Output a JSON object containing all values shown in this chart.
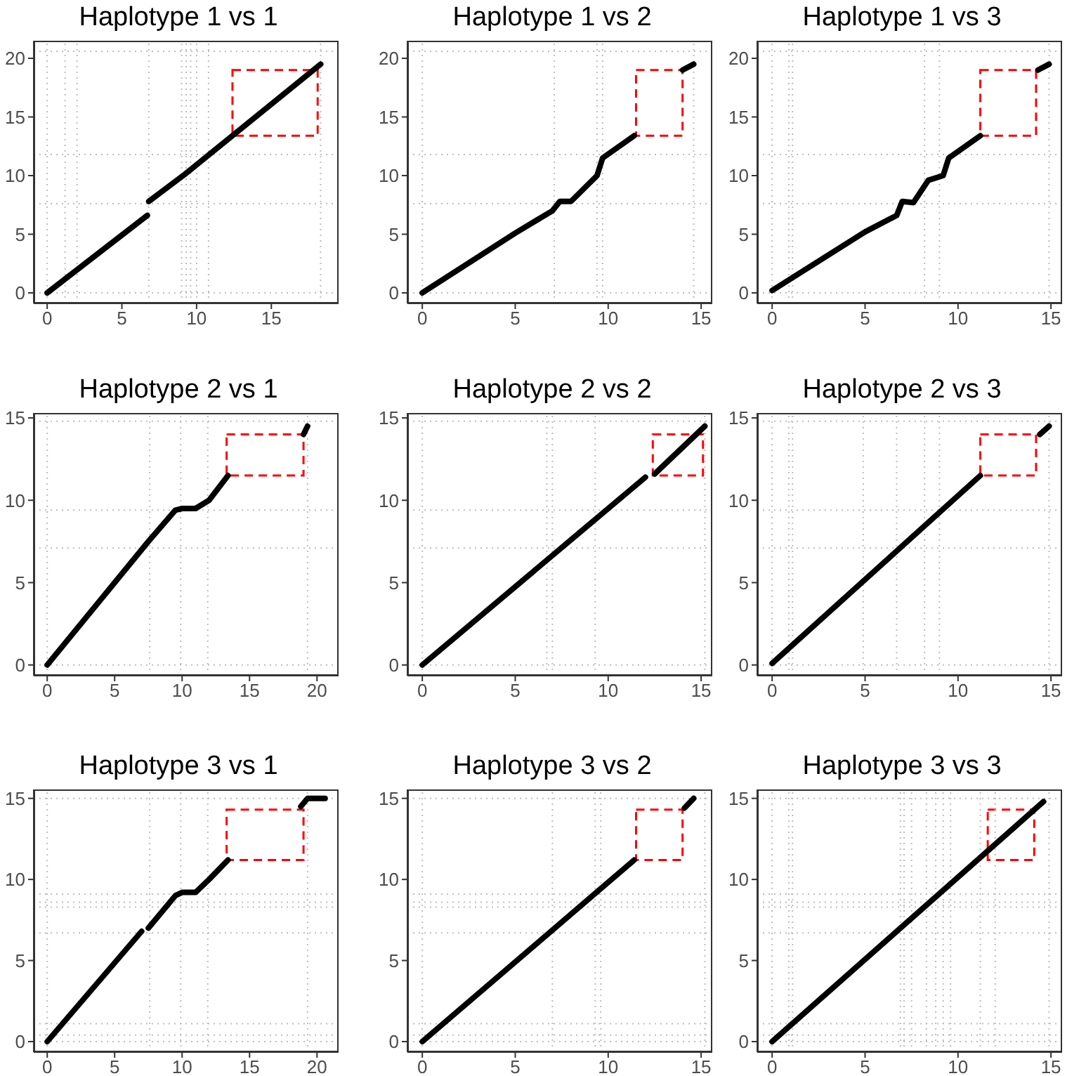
{
  "chart_data": [
    {
      "type": "line",
      "title": "Haplotype 1 vs 1",
      "xlim": [
        -0.9,
        19.5
      ],
      "ylim": [
        -0.9,
        21.5
      ],
      "xticks": [
        0,
        5,
        10,
        15
      ],
      "yticks": [
        0,
        5,
        10,
        15,
        20
      ],
      "series": [
        {
          "color": "#000000",
          "x": [
            0,
            6.7,
            6.75,
            6.8,
            9.2,
            18.3
          ],
          "values": [
            0,
            6.6,
            null,
            7.8,
            10.1,
            19.5
          ]
        }
      ],
      "ref_lines": [
        {
          "axis": "x",
          "value": 0,
          "color": "#bdbdbd",
          "line_style": "dotted"
        },
        {
          "axis": "x",
          "value": 1.2,
          "color": "#bdbdbd",
          "line_style": "dotted"
        },
        {
          "axis": "x",
          "value": 2,
          "color": "#bdbdbd",
          "line_style": "dotted"
        },
        {
          "axis": "x",
          "value": 6.8,
          "color": "#bdbdbd",
          "line_style": "dotted"
        },
        {
          "axis": "x",
          "value": 9,
          "color": "#bdbdbd",
          "line_style": "dotted"
        },
        {
          "axis": "x",
          "value": 9.3,
          "color": "#bdbdbd",
          "line_style": "dotted"
        },
        {
          "axis": "x",
          "value": 9.6,
          "color": "#bdbdbd",
          "line_style": "dotted"
        },
        {
          "axis": "x",
          "value": 10,
          "color": "#bdbdbd",
          "line_style": "dotted"
        },
        {
          "axis": "x",
          "value": 10.8,
          "color": "#bdbdbd",
          "line_style": "dotted"
        },
        {
          "axis": "x",
          "value": 18.3,
          "color": "#bdbdbd",
          "line_style": "dotted"
        },
        {
          "axis": "y",
          "value": 0,
          "color": "#bdbdbd",
          "line_style": "dotted"
        },
        {
          "axis": "y",
          "value": 7.6,
          "color": "#bdbdbd",
          "line_style": "dotted"
        },
        {
          "axis": "y",
          "value": 11.8,
          "color": "#bdbdbd",
          "line_style": "dotted"
        },
        {
          "axis": "y",
          "value": 20.6,
          "color": "#bdbdbd",
          "line_style": "dotted"
        }
      ],
      "line_style": "solid"
    },
    {
      "type": "line",
      "title": "Haplotype 1 vs 2",
      "xlim": [
        -0.8,
        15.6
      ],
      "ylim": [
        -0.9,
        21.5
      ],
      "xticks": [
        0,
        5,
        10,
        15
      ],
      "yticks": [
        0,
        5,
        10,
        15,
        20
      ],
      "series": [
        {
          "color": "#000000",
          "x": [
            0,
            5,
            7,
            7.4,
            8,
            9.4,
            9.7,
            11.4,
            12,
            14,
            14.6
          ],
          "values": [
            0,
            5.1,
            7,
            7.8,
            7.8,
            10,
            11.5,
            13.4,
            null,
            19,
            19.5
          ]
        }
      ],
      "ref_lines": [
        {
          "axis": "x",
          "value": 0,
          "color": "#bdbdbd",
          "line_style": "dotted"
        },
        {
          "axis": "x",
          "value": 7.1,
          "color": "#bdbdbd",
          "line_style": "dotted"
        },
        {
          "axis": "x",
          "value": 9.4,
          "color": "#bdbdbd",
          "line_style": "dotted"
        },
        {
          "axis": "x",
          "value": 9.7,
          "color": "#bdbdbd",
          "line_style": "dotted"
        },
        {
          "axis": "x",
          "value": 14.6,
          "color": "#bdbdbd",
          "line_style": "dotted"
        },
        {
          "axis": "y",
          "value": 0,
          "color": "#bdbdbd",
          "line_style": "dotted"
        },
        {
          "axis": "y",
          "value": 7.6,
          "color": "#bdbdbd",
          "line_style": "dotted"
        },
        {
          "axis": "y",
          "value": 11.8,
          "color": "#bdbdbd",
          "line_style": "dotted"
        },
        {
          "axis": "y",
          "value": 20.6,
          "color": "#bdbdbd",
          "line_style": "dotted"
        }
      ],
      "line_style": "solid"
    },
    {
      "type": "line",
      "title": "Haplotype 1 vs 3",
      "xlim": [
        -0.8,
        15.6
      ],
      "ylim": [
        -0.9,
        21.5
      ],
      "xticks": [
        0,
        5,
        10,
        15
      ],
      "yticks": [
        0,
        5,
        10,
        15,
        20
      ],
      "series": [
        {
          "color": "#000000",
          "x": [
            0,
            5,
            6.7,
            7,
            7.6,
            8.4,
            9.2,
            9.5,
            11.2,
            12,
            14.3,
            14.9
          ],
          "values": [
            0.2,
            5.2,
            6.6,
            7.8,
            7.7,
            9.6,
            10,
            11.5,
            13.4,
            null,
            19,
            19.5
          ]
        }
      ],
      "ref_lines": [
        {
          "axis": "x",
          "value": 0,
          "color": "#bdbdbd",
          "line_style": "dotted"
        },
        {
          "axis": "x",
          "value": 0.9,
          "color": "#bdbdbd",
          "line_style": "dotted"
        },
        {
          "axis": "x",
          "value": 1.1,
          "color": "#bdbdbd",
          "line_style": "dotted"
        },
        {
          "axis": "x",
          "value": 8.2,
          "color": "#bdbdbd",
          "line_style": "dotted"
        },
        {
          "axis": "x",
          "value": 9,
          "color": "#bdbdbd",
          "line_style": "dotted"
        },
        {
          "axis": "x",
          "value": 14.9,
          "color": "#bdbdbd",
          "line_style": "dotted"
        },
        {
          "axis": "y",
          "value": 0,
          "color": "#bdbdbd",
          "line_style": "dotted"
        },
        {
          "axis": "y",
          "value": 7.6,
          "color": "#bdbdbd",
          "line_style": "dotted"
        },
        {
          "axis": "y",
          "value": 11.8,
          "color": "#bdbdbd",
          "line_style": "dotted"
        },
        {
          "axis": "y",
          "value": 20.6,
          "color": "#bdbdbd",
          "line_style": "dotted"
        }
      ],
      "line_style": "solid"
    },
    {
      "type": "line",
      "title": "Haplotype 2 vs 1",
      "xlim": [
        -1,
        21.6
      ],
      "ylim": [
        -0.65,
        15.3
      ],
      "xticks": [
        0,
        5,
        10,
        15,
        20
      ],
      "yticks": [
        0,
        5,
        10,
        15
      ],
      "series": [
        {
          "color": "#000000",
          "x": [
            0,
            7,
            7.5,
            9.5,
            10,
            11,
            12,
            13.4,
            16,
            19,
            19.3
          ],
          "values": [
            0,
            7,
            7.5,
            9.4,
            9.5,
            9.5,
            10,
            11.5,
            null,
            14,
            14.5
          ]
        }
      ],
      "ref_lines": [
        {
          "axis": "x",
          "value": 0,
          "color": "#bdbdbd",
          "line_style": "dotted"
        },
        {
          "axis": "x",
          "value": 7.6,
          "color": "#bdbdbd",
          "line_style": "dotted"
        },
        {
          "axis": "x",
          "value": 9.9,
          "color": "#bdbdbd",
          "line_style": "dotted"
        },
        {
          "axis": "x",
          "value": 11.9,
          "color": "#bdbdbd",
          "line_style": "dotted"
        },
        {
          "axis": "x",
          "value": 19.3,
          "color": "#bdbdbd",
          "line_style": "dotted"
        },
        {
          "axis": "y",
          "value": 0,
          "color": "#bdbdbd",
          "line_style": "dotted"
        },
        {
          "axis": "y",
          "value": 7.1,
          "color": "#bdbdbd",
          "line_style": "dotted"
        },
        {
          "axis": "y",
          "value": 9.4,
          "color": "#bdbdbd",
          "line_style": "dotted"
        },
        {
          "axis": "y",
          "value": 14.8,
          "color": "#bdbdbd",
          "line_style": "dotted"
        }
      ],
      "line_style": "solid"
    },
    {
      "type": "line",
      "title": "Haplotype 2 vs 2",
      "xlim": [
        -0.8,
        15.6
      ],
      "ylim": [
        -0.65,
        15.3
      ],
      "xticks": [
        0,
        5,
        10,
        15
      ],
      "yticks": [
        0,
        5,
        10,
        15
      ],
      "series": [
        {
          "color": "#000000",
          "x": [
            0,
            12,
            12.2,
            12.5,
            15.2
          ],
          "values": [
            0,
            11.4,
            null,
            11.6,
            14.5
          ]
        }
      ],
      "ref_lines": [
        {
          "axis": "x",
          "value": 0,
          "color": "#bdbdbd",
          "line_style": "dotted"
        },
        {
          "axis": "x",
          "value": 6.7,
          "color": "#bdbdbd",
          "line_style": "dotted"
        },
        {
          "axis": "x",
          "value": 7,
          "color": "#bdbdbd",
          "line_style": "dotted"
        },
        {
          "axis": "x",
          "value": 9.3,
          "color": "#bdbdbd",
          "line_style": "dotted"
        },
        {
          "axis": "x",
          "value": 15.2,
          "color": "#bdbdbd",
          "line_style": "dotted"
        },
        {
          "axis": "y",
          "value": 0,
          "color": "#bdbdbd",
          "line_style": "dotted"
        },
        {
          "axis": "y",
          "value": 7.1,
          "color": "#bdbdbd",
          "line_style": "dotted"
        },
        {
          "axis": "y",
          "value": 9.4,
          "color": "#bdbdbd",
          "line_style": "dotted"
        },
        {
          "axis": "y",
          "value": 14.8,
          "color": "#bdbdbd",
          "line_style": "dotted"
        }
      ],
      "line_style": "solid"
    },
    {
      "type": "line",
      "title": "Haplotype 2 vs 3",
      "xlim": [
        -0.8,
        15.6
      ],
      "ylim": [
        -0.65,
        15.3
      ],
      "xticks": [
        0,
        5,
        10,
        15
      ],
      "yticks": [
        0,
        5,
        10,
        15
      ],
      "series": [
        {
          "color": "#000000",
          "x": [
            0,
            11.2,
            12,
            14.4,
            14.9
          ],
          "values": [
            0.1,
            11.5,
            null,
            14,
            14.5
          ]
        }
      ],
      "ref_lines": [
        {
          "axis": "x",
          "value": 0,
          "color": "#bdbdbd",
          "line_style": "dotted"
        },
        {
          "axis": "x",
          "value": 0.9,
          "color": "#bdbdbd",
          "line_style": "dotted"
        },
        {
          "axis": "x",
          "value": 1.1,
          "color": "#bdbdbd",
          "line_style": "dotted"
        },
        {
          "axis": "x",
          "value": 4.9,
          "color": "#bdbdbd",
          "line_style": "dotted"
        },
        {
          "axis": "x",
          "value": 6.7,
          "color": "#bdbdbd",
          "line_style": "dotted"
        },
        {
          "axis": "x",
          "value": 8.2,
          "color": "#bdbdbd",
          "line_style": "dotted"
        },
        {
          "axis": "x",
          "value": 9,
          "color": "#bdbdbd",
          "line_style": "dotted"
        },
        {
          "axis": "x",
          "value": 14.9,
          "color": "#bdbdbd",
          "line_style": "dotted"
        },
        {
          "axis": "y",
          "value": 0,
          "color": "#bdbdbd",
          "line_style": "dotted"
        },
        {
          "axis": "y",
          "value": 7.1,
          "color": "#bdbdbd",
          "line_style": "dotted"
        },
        {
          "axis": "y",
          "value": 9.4,
          "color": "#bdbdbd",
          "line_style": "dotted"
        },
        {
          "axis": "y",
          "value": 14.8,
          "color": "#bdbdbd",
          "line_style": "dotted"
        }
      ],
      "line_style": "solid"
    },
    {
      "type": "line",
      "title": "Haplotype 3 vs 1",
      "xlim": [
        -1,
        21.6
      ],
      "ylim": [
        -0.65,
        15.55
      ],
      "xticks": [
        0,
        5,
        10,
        15,
        20
      ],
      "yticks": [
        0,
        5,
        10,
        15
      ],
      "series": [
        {
          "color": "#000000",
          "x": [
            0,
            7,
            7.2,
            7.5,
            9.5,
            10,
            11,
            12,
            13.4,
            16,
            18.8,
            19.3,
            20.6
          ],
          "values": [
            0,
            6.8,
            null,
            7,
            9,
            9.2,
            9.2,
            10,
            11.2,
            null,
            14.5,
            15,
            15
          ]
        }
      ],
      "ref_lines": [
        {
          "axis": "x",
          "value": 0,
          "color": "#bdbdbd",
          "line_style": "dotted"
        },
        {
          "axis": "x",
          "value": 7.6,
          "color": "#bdbdbd",
          "line_style": "dotted"
        },
        {
          "axis": "x",
          "value": 9.9,
          "color": "#bdbdbd",
          "line_style": "dotted"
        },
        {
          "axis": "x",
          "value": 11.9,
          "color": "#bdbdbd",
          "line_style": "dotted"
        },
        {
          "axis": "x",
          "value": 19.3,
          "color": "#bdbdbd",
          "line_style": "dotted"
        },
        {
          "axis": "y",
          "value": 0,
          "color": "#bdbdbd",
          "line_style": "dotted"
        },
        {
          "axis": "y",
          "value": 0.4,
          "color": "#bdbdbd",
          "line_style": "dotted"
        },
        {
          "axis": "y",
          "value": 1.1,
          "color": "#bdbdbd",
          "line_style": "dotted"
        },
        {
          "axis": "y",
          "value": 6.7,
          "color": "#bdbdbd",
          "line_style": "dotted"
        },
        {
          "axis": "y",
          "value": 8.3,
          "color": "#bdbdbd",
          "line_style": "dotted"
        },
        {
          "axis": "y",
          "value": 8.6,
          "color": "#bdbdbd",
          "line_style": "dotted"
        },
        {
          "axis": "y",
          "value": 9.1,
          "color": "#bdbdbd",
          "line_style": "dotted"
        },
        {
          "axis": "y",
          "value": 15,
          "color": "#bdbdbd",
          "line_style": "dotted"
        }
      ],
      "line_style": "solid"
    },
    {
      "type": "line",
      "title": "Haplotype 3 vs 2",
      "xlim": [
        -0.8,
        15.6
      ],
      "ylim": [
        -0.65,
        15.55
      ],
      "xticks": [
        0,
        5,
        10,
        15
      ],
      "yticks": [
        0,
        5,
        10,
        15
      ],
      "series": [
        {
          "color": "#000000",
          "x": [
            0,
            11.4,
            12,
            14.1,
            14.6
          ],
          "values": [
            0,
            11.2,
            null,
            14.4,
            15
          ]
        }
      ],
      "ref_lines": [
        {
          "axis": "x",
          "value": 0,
          "color": "#bdbdbd",
          "line_style": "dotted"
        },
        {
          "axis": "x",
          "value": 7,
          "color": "#bdbdbd",
          "line_style": "dotted"
        },
        {
          "axis": "x",
          "value": 9.3,
          "color": "#bdbdbd",
          "line_style": "dotted"
        },
        {
          "axis": "x",
          "value": 9.6,
          "color": "#bdbdbd",
          "line_style": "dotted"
        },
        {
          "axis": "x",
          "value": 15.2,
          "color": "#bdbdbd",
          "line_style": "dotted"
        },
        {
          "axis": "y",
          "value": 0,
          "color": "#bdbdbd",
          "line_style": "dotted"
        },
        {
          "axis": "y",
          "value": 0.4,
          "color": "#bdbdbd",
          "line_style": "dotted"
        },
        {
          "axis": "y",
          "value": 1.1,
          "color": "#bdbdbd",
          "line_style": "dotted"
        },
        {
          "axis": "y",
          "value": 6.7,
          "color": "#bdbdbd",
          "line_style": "dotted"
        },
        {
          "axis": "y",
          "value": 8.3,
          "color": "#bdbdbd",
          "line_style": "dotted"
        },
        {
          "axis": "y",
          "value": 8.6,
          "color": "#bdbdbd",
          "line_style": "dotted"
        },
        {
          "axis": "y",
          "value": 9.1,
          "color": "#bdbdbd",
          "line_style": "dotted"
        },
        {
          "axis": "y",
          "value": 15,
          "color": "#bdbdbd",
          "line_style": "dotted"
        }
      ],
      "line_style": "solid"
    },
    {
      "type": "line",
      "title": "Haplotype 3 vs 3",
      "xlim": [
        -0.8,
        15.6
      ],
      "ylim": [
        -0.65,
        15.55
      ],
      "xticks": [
        0,
        5,
        10,
        15
      ],
      "yticks": [
        0,
        5,
        10,
        15
      ],
      "series": [
        {
          "color": "#000000",
          "x": [
            0,
            14.6
          ],
          "values": [
            0,
            14.8
          ]
        }
      ],
      "ref_lines": [
        {
          "axis": "x",
          "value": 0,
          "color": "#bdbdbd",
          "line_style": "dotted"
        },
        {
          "axis": "x",
          "value": 0.9,
          "color": "#bdbdbd",
          "line_style": "dotted"
        },
        {
          "axis": "x",
          "value": 1.1,
          "color": "#bdbdbd",
          "line_style": "dotted"
        },
        {
          "axis": "x",
          "value": 6.9,
          "color": "#bdbdbd",
          "line_style": "dotted"
        },
        {
          "axis": "x",
          "value": 7.1,
          "color": "#bdbdbd",
          "line_style": "dotted"
        },
        {
          "axis": "x",
          "value": 7.5,
          "color": "#bdbdbd",
          "line_style": "dotted"
        },
        {
          "axis": "x",
          "value": 8.3,
          "color": "#bdbdbd",
          "line_style": "dotted"
        },
        {
          "axis": "x",
          "value": 8.8,
          "color": "#bdbdbd",
          "line_style": "dotted"
        },
        {
          "axis": "x",
          "value": 9.2,
          "color": "#bdbdbd",
          "line_style": "dotted"
        },
        {
          "axis": "x",
          "value": 9.6,
          "color": "#bdbdbd",
          "line_style": "dotted"
        },
        {
          "axis": "x",
          "value": 11.2,
          "color": "#bdbdbd",
          "line_style": "dotted"
        },
        {
          "axis": "x",
          "value": 12,
          "color": "#bdbdbd",
          "line_style": "dotted"
        },
        {
          "axis": "x",
          "value": 14.9,
          "color": "#bdbdbd",
          "line_style": "dotted"
        },
        {
          "axis": "y",
          "value": 0,
          "color": "#bdbdbd",
          "line_style": "dotted"
        },
        {
          "axis": "y",
          "value": 0.4,
          "color": "#bdbdbd",
          "line_style": "dotted"
        },
        {
          "axis": "y",
          "value": 1.1,
          "color": "#bdbdbd",
          "line_style": "dotted"
        },
        {
          "axis": "y",
          "value": 6.7,
          "color": "#bdbdbd",
          "line_style": "dotted"
        },
        {
          "axis": "y",
          "value": 8.3,
          "color": "#bdbdbd",
          "line_style": "dotted"
        },
        {
          "axis": "y",
          "value": 8.6,
          "color": "#bdbdbd",
          "line_style": "dotted"
        },
        {
          "axis": "y",
          "value": 9.1,
          "color": "#bdbdbd",
          "line_style": "dotted"
        },
        {
          "axis": "y",
          "value": 15,
          "color": "#bdbdbd",
          "line_style": "dotted"
        }
      ],
      "line_style": "solid"
    }
  ]
}
